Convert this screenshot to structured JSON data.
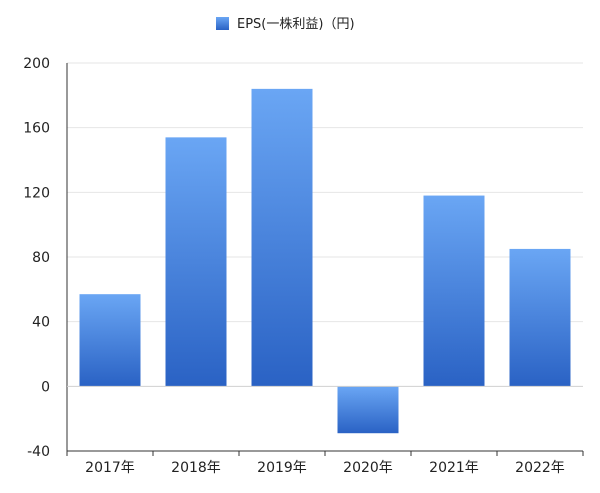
{
  "chart_data": {
    "type": "bar",
    "title": "",
    "xlabel": "",
    "ylabel": "",
    "categories": [
      "2017年",
      "2018年",
      "2019年",
      "2020年",
      "2021年",
      "2022年"
    ],
    "series": [
      {
        "name": "EPS(一株利益)（円)",
        "values": [
          57,
          154,
          184,
          -29,
          118,
          85
        ]
      }
    ],
    "ylim": [
      -40,
      200
    ],
    "yticks": [
      -40,
      0,
      40,
      80,
      120,
      160,
      200
    ],
    "grid": true,
    "legend_position": "top-center",
    "colors": {
      "bar_top": "#6aa6f4",
      "bar_bottom": "#2a62c4",
      "grid": "#e6e6e6",
      "axis": "#333333"
    }
  }
}
